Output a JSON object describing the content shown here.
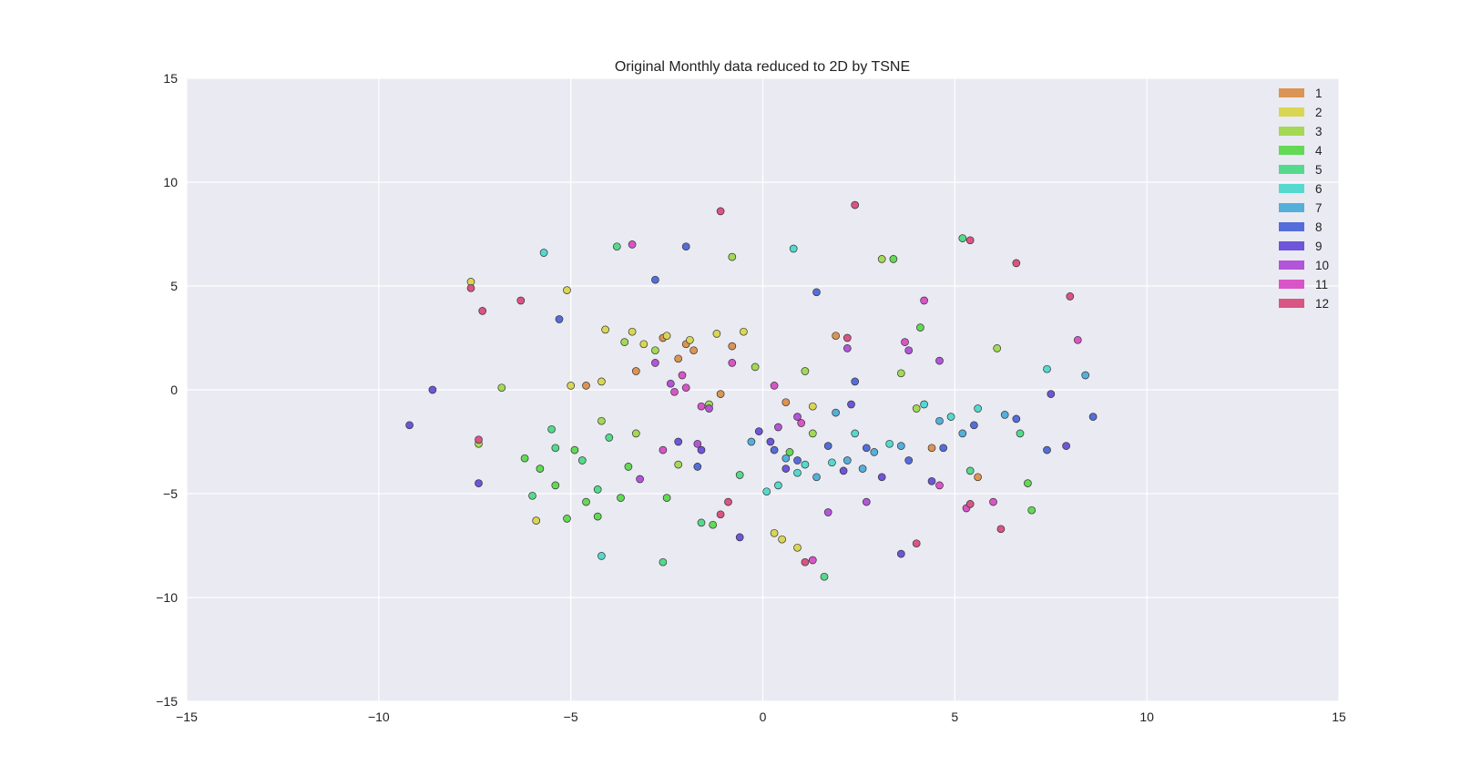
{
  "chart_data": {
    "type": "scatter",
    "title": "Original Monthly data reduced to 2D by TSNE",
    "xlabel": "",
    "ylabel": "",
    "xlim": [
      -15,
      15
    ],
    "ylim": [
      -15,
      15
    ],
    "xticks": [
      -15,
      -10,
      -5,
      0,
      5,
      10,
      15
    ],
    "yticks": [
      -15,
      -10,
      -5,
      0,
      5,
      10,
      15
    ],
    "xtick_labels": [
      "−15",
      "−10",
      "−5",
      "0",
      "5",
      "10",
      "15"
    ],
    "ytick_labels": [
      "−15",
      "−10",
      "−5",
      "0",
      "5",
      "10",
      "15"
    ],
    "grid": true,
    "background": "#EAEAF2",
    "legend_position": "top-right",
    "series": [
      {
        "name": "1",
        "color": "#DB9455",
        "points": [
          [
            -1.8,
            1.9
          ],
          [
            -2.2,
            1.5
          ],
          [
            -3.3,
            0.9
          ],
          [
            -0.8,
            2.1
          ],
          [
            -2.6,
            2.5
          ],
          [
            -1.1,
            -0.2
          ],
          [
            0.6,
            -0.6
          ],
          [
            -4.6,
            0.2
          ],
          [
            5.6,
            -4.2
          ],
          [
            4.4,
            -2.8
          ],
          [
            1.9,
            2.6
          ],
          [
            -2.0,
            2.2
          ]
        ]
      },
      {
        "name": "2",
        "color": "#D9D655",
        "points": [
          [
            -2.5,
            2.6
          ],
          [
            -3.4,
            2.8
          ],
          [
            -1.9,
            2.4
          ],
          [
            -0.5,
            2.8
          ],
          [
            -4.1,
            2.9
          ],
          [
            -5.0,
            0.2
          ],
          [
            -4.2,
            0.4
          ],
          [
            -7.6,
            5.2
          ],
          [
            -5.1,
            4.8
          ],
          [
            0.3,
            -6.9
          ],
          [
            0.9,
            -7.6
          ],
          [
            1.3,
            -0.8
          ],
          [
            -5.9,
            -6.3
          ],
          [
            -3.1,
            2.2
          ],
          [
            -1.2,
            2.7
          ],
          [
            0.5,
            -7.2
          ]
        ]
      },
      {
        "name": "3",
        "color": "#A3D955",
        "points": [
          [
            -3.6,
            2.3
          ],
          [
            -2.8,
            1.9
          ],
          [
            -0.2,
            1.1
          ],
          [
            -4.2,
            -1.5
          ],
          [
            -3.3,
            -2.1
          ],
          [
            1.1,
            0.9
          ],
          [
            1.3,
            -2.1
          ],
          [
            -6.8,
            0.1
          ],
          [
            6.1,
            2.0
          ],
          [
            3.6,
            0.8
          ],
          [
            -7.4,
            -2.6
          ],
          [
            -1.4,
            -0.7
          ],
          [
            -0.8,
            6.4
          ],
          [
            3.1,
            6.3
          ],
          [
            -2.2,
            -3.6
          ],
          [
            4.0,
            -0.9
          ]
        ]
      },
      {
        "name": "4",
        "color": "#63D955",
        "points": [
          [
            -5.8,
            -3.8
          ],
          [
            -5.4,
            -4.6
          ],
          [
            -4.9,
            -2.9
          ],
          [
            -3.7,
            -5.2
          ],
          [
            -4.3,
            -6.1
          ],
          [
            -5.1,
            -6.2
          ],
          [
            -3.5,
            -3.7
          ],
          [
            -2.5,
            -5.2
          ],
          [
            -1.3,
            -6.5
          ],
          [
            0.7,
            -3.0
          ],
          [
            3.4,
            6.3
          ],
          [
            4.1,
            3.0
          ],
          [
            6.9,
            -4.5
          ],
          [
            7.0,
            -5.8
          ],
          [
            -6.2,
            -3.3
          ],
          [
            -4.6,
            -5.4
          ]
        ]
      },
      {
        "name": "5",
        "color": "#55D98C",
        "points": [
          [
            -5.4,
            -2.8
          ],
          [
            -6.0,
            -5.1
          ],
          [
            -4.7,
            -3.4
          ],
          [
            -4.0,
            -2.3
          ],
          [
            -2.6,
            -8.3
          ],
          [
            1.6,
            -9.0
          ],
          [
            -0.6,
            -4.1
          ],
          [
            5.4,
            -3.9
          ],
          [
            6.7,
            -2.1
          ],
          [
            -3.8,
            6.9
          ],
          [
            -1.6,
            -6.4
          ],
          [
            5.2,
            7.3
          ],
          [
            -5.5,
            -1.9
          ],
          [
            -4.3,
            -4.8
          ]
        ]
      },
      {
        "name": "6",
        "color": "#55D9CF",
        "points": [
          [
            0.4,
            -4.6
          ],
          [
            0.9,
            -4.0
          ],
          [
            1.8,
            -3.5
          ],
          [
            2.4,
            -2.1
          ],
          [
            3.3,
            -2.6
          ],
          [
            4.2,
            -0.7
          ],
          [
            4.9,
            -1.3
          ],
          [
            5.6,
            -0.9
          ],
          [
            7.4,
            1.0
          ],
          [
            -4.2,
            -8.0
          ],
          [
            0.8,
            6.8
          ],
          [
            -5.7,
            6.6
          ],
          [
            0.1,
            -4.9
          ],
          [
            1.1,
            -3.6
          ]
        ]
      },
      {
        "name": "7",
        "color": "#55B0D9",
        "points": [
          [
            0.6,
            -3.3
          ],
          [
            1.4,
            -4.2
          ],
          [
            2.2,
            -3.4
          ],
          [
            2.9,
            -3.0
          ],
          [
            3.6,
            -2.7
          ],
          [
            4.6,
            -1.5
          ],
          [
            5.2,
            -2.1
          ],
          [
            6.3,
            -1.2
          ],
          [
            -0.3,
            -2.5
          ],
          [
            1.9,
            -1.1
          ],
          [
            8.4,
            0.7
          ],
          [
            2.6,
            -3.8
          ]
        ]
      },
      {
        "name": "8",
        "color": "#556DD9",
        "points": [
          [
            0.3,
            -2.9
          ],
          [
            0.9,
            -3.4
          ],
          [
            1.7,
            -2.7
          ],
          [
            2.7,
            -2.8
          ],
          [
            3.8,
            -3.4
          ],
          [
            4.7,
            -2.8
          ],
          [
            5.5,
            -1.7
          ],
          [
            6.6,
            -1.4
          ],
          [
            -2.0,
            6.9
          ],
          [
            -5.3,
            3.4
          ],
          [
            2.4,
            0.4
          ],
          [
            7.4,
            -2.9
          ],
          [
            -1.7,
            -3.7
          ],
          [
            1.4,
            4.7
          ],
          [
            8.6,
            -1.3
          ],
          [
            -2.8,
            5.3
          ]
        ]
      },
      {
        "name": "9",
        "color": "#6F55D9",
        "points": [
          [
            0.6,
            -3.8
          ],
          [
            2.1,
            -3.9
          ],
          [
            3.1,
            -4.2
          ],
          [
            4.4,
            -4.4
          ],
          [
            0.2,
            -2.5
          ],
          [
            -0.6,
            -7.1
          ],
          [
            3.6,
            -7.9
          ],
          [
            7.9,
            -2.7
          ],
          [
            -8.6,
            0.0
          ],
          [
            -9.2,
            -1.7
          ],
          [
            -7.4,
            -4.5
          ],
          [
            -2.2,
            -2.5
          ],
          [
            2.3,
            -0.7
          ],
          [
            7.5,
            -0.2
          ],
          [
            -0.1,
            -2.0
          ],
          [
            -1.6,
            -2.9
          ]
        ]
      },
      {
        "name": "10",
        "color": "#B355D9",
        "points": [
          [
            0.9,
            -1.3
          ],
          [
            -2.4,
            0.3
          ],
          [
            -1.4,
            -0.9
          ],
          [
            2.2,
            2.0
          ],
          [
            3.8,
            1.9
          ],
          [
            -1.7,
            -2.6
          ],
          [
            1.7,
            -5.9
          ],
          [
            -2.8,
            1.3
          ],
          [
            4.6,
            1.4
          ],
          [
            0.4,
            -1.8
          ],
          [
            2.7,
            -5.4
          ],
          [
            -3.2,
            -4.3
          ]
        ]
      },
      {
        "name": "11",
        "color": "#D955C7",
        "points": [
          [
            -2.3,
            -0.1
          ],
          [
            -1.6,
            -0.8
          ],
          [
            -2.1,
            0.7
          ],
          [
            -0.8,
            1.3
          ],
          [
            0.3,
            0.2
          ],
          [
            1.0,
            -1.6
          ],
          [
            3.7,
            2.3
          ],
          [
            4.6,
            -4.6
          ],
          [
            6.0,
            -5.4
          ],
          [
            -2.6,
            -2.9
          ],
          [
            4.2,
            4.3
          ],
          [
            1.3,
            -8.2
          ],
          [
            -3.4,
            7.0
          ],
          [
            -2.0,
            0.1
          ],
          [
            5.3,
            -5.7
          ],
          [
            8.2,
            2.4
          ]
        ]
      },
      {
        "name": "12",
        "color": "#D95583",
        "points": [
          [
            -7.3,
            3.8
          ],
          [
            -6.3,
            4.3
          ],
          [
            -7.6,
            4.9
          ],
          [
            -1.1,
            8.6
          ],
          [
            2.4,
            8.9
          ],
          [
            5.4,
            7.2
          ],
          [
            6.6,
            6.1
          ],
          [
            8.0,
            4.5
          ],
          [
            -0.9,
            -5.4
          ],
          [
            -1.1,
            -6.0
          ],
          [
            1.1,
            -8.3
          ],
          [
            4.0,
            -7.4
          ],
          [
            5.4,
            -5.5
          ],
          [
            6.2,
            -6.7
          ],
          [
            2.2,
            2.5
          ],
          [
            -7.4,
            -2.4
          ]
        ]
      }
    ]
  }
}
